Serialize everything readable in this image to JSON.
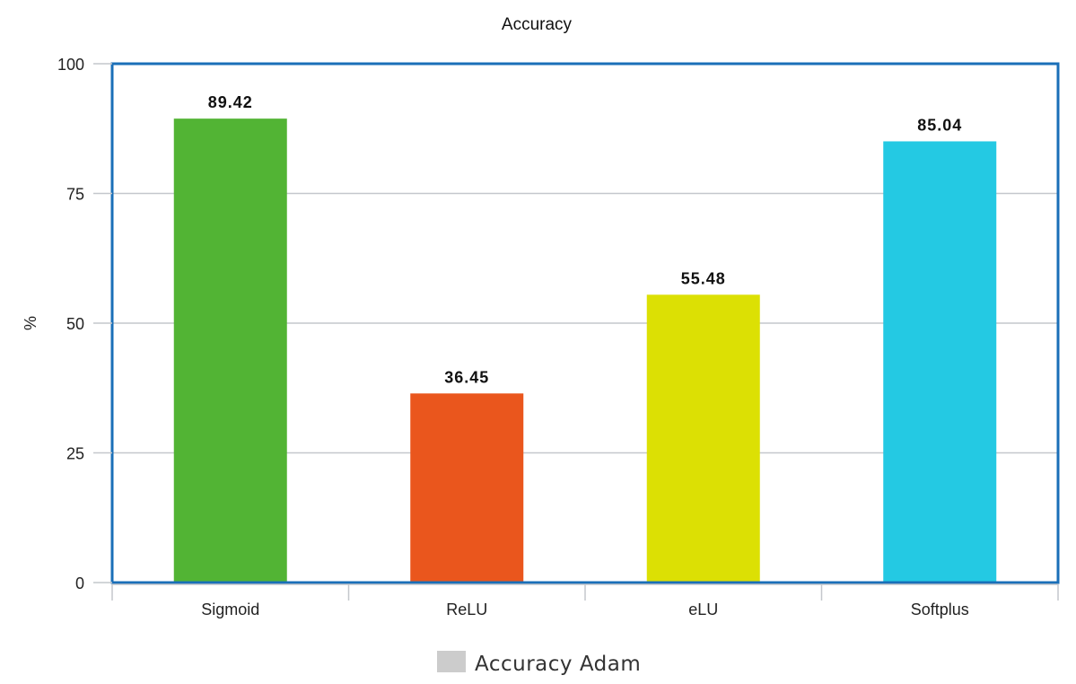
{
  "chart_data": {
    "type": "bar",
    "title": "Accuracy",
    "ylabel": "%",
    "xlabel": "",
    "ylim": [
      0,
      100
    ],
    "yticks": [
      0,
      25,
      50,
      75,
      100
    ],
    "categories": [
      "Sigmoid",
      "ReLU",
      "eLU",
      "Softplus"
    ],
    "series": [
      {
        "name": "Accuracy Adam",
        "values": [
          89.42,
          36.45,
          55.48,
          85.04
        ],
        "value_labels": [
          "89.42",
          "36.45",
          "55.48",
          "85.04"
        ],
        "colors": [
          "#52b434",
          "#ea561d",
          "#dce004",
          "#24c9e3"
        ]
      }
    ],
    "legend": {
      "position": "bottom",
      "swatch_color": "#cccccc"
    },
    "grid": true,
    "frame_color": "#1a6fb8"
  }
}
